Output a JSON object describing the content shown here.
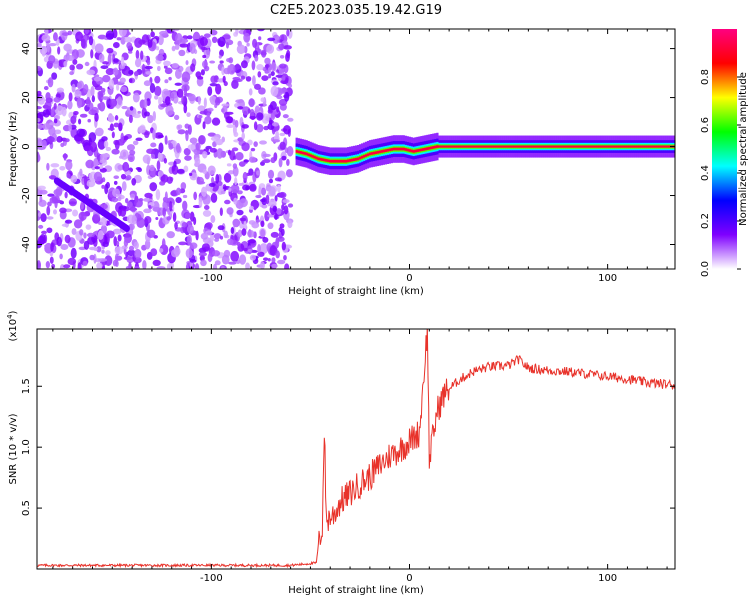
{
  "title": "C2E5.2023.035.19.42.G19",
  "chart_data": [
    {
      "type": "heatmap",
      "xlabel": "Height of straight line (km)",
      "ylabel": "Frequency (Hz)",
      "xlim": [
        -188,
        134
      ],
      "ylim": [
        -50,
        48
      ],
      "xticks": [
        -100,
        0,
        100
      ],
      "yticks": [
        -40,
        -20,
        0,
        20,
        40
      ],
      "trace": [
        {
          "x": -57,
          "y": -2
        },
        {
          "x": -52,
          "y": -3
        },
        {
          "x": -46,
          "y": -5
        },
        {
          "x": -40,
          "y": -6
        },
        {
          "x": -32,
          "y": -6
        },
        {
          "x": -26,
          "y": -5
        },
        {
          "x": -20,
          "y": -3
        },
        {
          "x": -14,
          "y": -2
        },
        {
          "x": -8,
          "y": -1
        },
        {
          "x": -3,
          "y": -1
        },
        {
          "x": 2,
          "y": -2
        },
        {
          "x": 8,
          "y": -1
        },
        {
          "x": 14,
          "y": 0
        },
        {
          "x": 20,
          "y": 0
        },
        {
          "x": 40,
          "y": 0
        },
        {
          "x": 70,
          "y": 0
        },
        {
          "x": 100,
          "y": 0
        },
        {
          "x": 134,
          "y": 0
        }
      ],
      "colorbar": {
        "label": "Normalized spectral amplitude",
        "range": [
          0,
          1
        ],
        "ticks": [
          "0.0",
          "0.2",
          "0.4",
          "0.6",
          "0.8"
        ],
        "colors": [
          "#ffffff",
          "#7f00ff",
          "#0000ff",
          "#00ffff",
          "#00ff00",
          "#ffff00",
          "#ff0000",
          "#ff0080"
        ]
      }
    },
    {
      "type": "line",
      "xlabel": "Height of straight line (km)",
      "ylabel": "SNR (10 * v/v)",
      "yscale_label": "(x10",
      "yscale_exp": "4",
      "xlim": [
        -188,
        134
      ],
      "ylim": [
        0,
        1.97
      ],
      "xticks": [
        -100,
        0,
        100
      ],
      "yticks": [
        "0.5",
        "1.0",
        "1.5"
      ],
      "series": [
        {
          "color": "#e8322a",
          "points": [
            {
              "x": -188,
              "y": 0.03
            },
            {
              "x": -60,
              "y": 0.03
            },
            {
              "x": -47,
              "y": 0.05
            },
            {
              "x": -46,
              "y": 0.2
            },
            {
              "x": -44,
              "y": 0.35
            },
            {
              "x": -43,
              "y": 1.16
            },
            {
              "x": -42,
              "y": 0.4
            },
            {
              "x": -38,
              "y": 0.45
            },
            {
              "x": -35,
              "y": 0.55
            },
            {
              "x": -30,
              "y": 0.62
            },
            {
              "x": -25,
              "y": 0.7
            },
            {
              "x": -20,
              "y": 0.76
            },
            {
              "x": -15,
              "y": 0.85
            },
            {
              "x": -10,
              "y": 0.93
            },
            {
              "x": -5,
              "y": 0.98
            },
            {
              "x": 0,
              "y": 1.05
            },
            {
              "x": 5,
              "y": 1.12
            },
            {
              "x": 9,
              "y": 1.97
            },
            {
              "x": 10,
              "y": 0.9
            },
            {
              "x": 14,
              "y": 1.3
            },
            {
              "x": 18,
              "y": 1.45
            },
            {
              "x": 25,
              "y": 1.55
            },
            {
              "x": 32,
              "y": 1.62
            },
            {
              "x": 40,
              "y": 1.66
            },
            {
              "x": 50,
              "y": 1.67
            },
            {
              "x": 55,
              "y": 1.72
            },
            {
              "x": 60,
              "y": 1.65
            },
            {
              "x": 70,
              "y": 1.63
            },
            {
              "x": 80,
              "y": 1.62
            },
            {
              "x": 90,
              "y": 1.6
            },
            {
              "x": 100,
              "y": 1.58
            },
            {
              "x": 110,
              "y": 1.56
            },
            {
              "x": 120,
              "y": 1.53
            },
            {
              "x": 134,
              "y": 1.51
            }
          ]
        }
      ]
    }
  ]
}
